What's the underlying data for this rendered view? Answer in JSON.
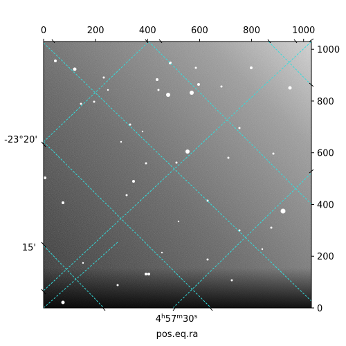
{
  "plot": {
    "x_axis_label": "pos.eq.ra",
    "x_ticks_top": [
      "0",
      "200",
      "400",
      "600",
      "800",
      "1000"
    ],
    "y_ticks_right": [
      "0",
      "200",
      "400",
      "600",
      "800",
      "1000"
    ],
    "dec_labels_left": [
      "-23°20'",
      "15'"
    ],
    "ra_label_bottom": {
      "h": "4",
      "m": "57",
      "s": "30"
    },
    "grid_color": "#33dddd",
    "pixel_range": [
      0,
      1030
    ]
  }
}
